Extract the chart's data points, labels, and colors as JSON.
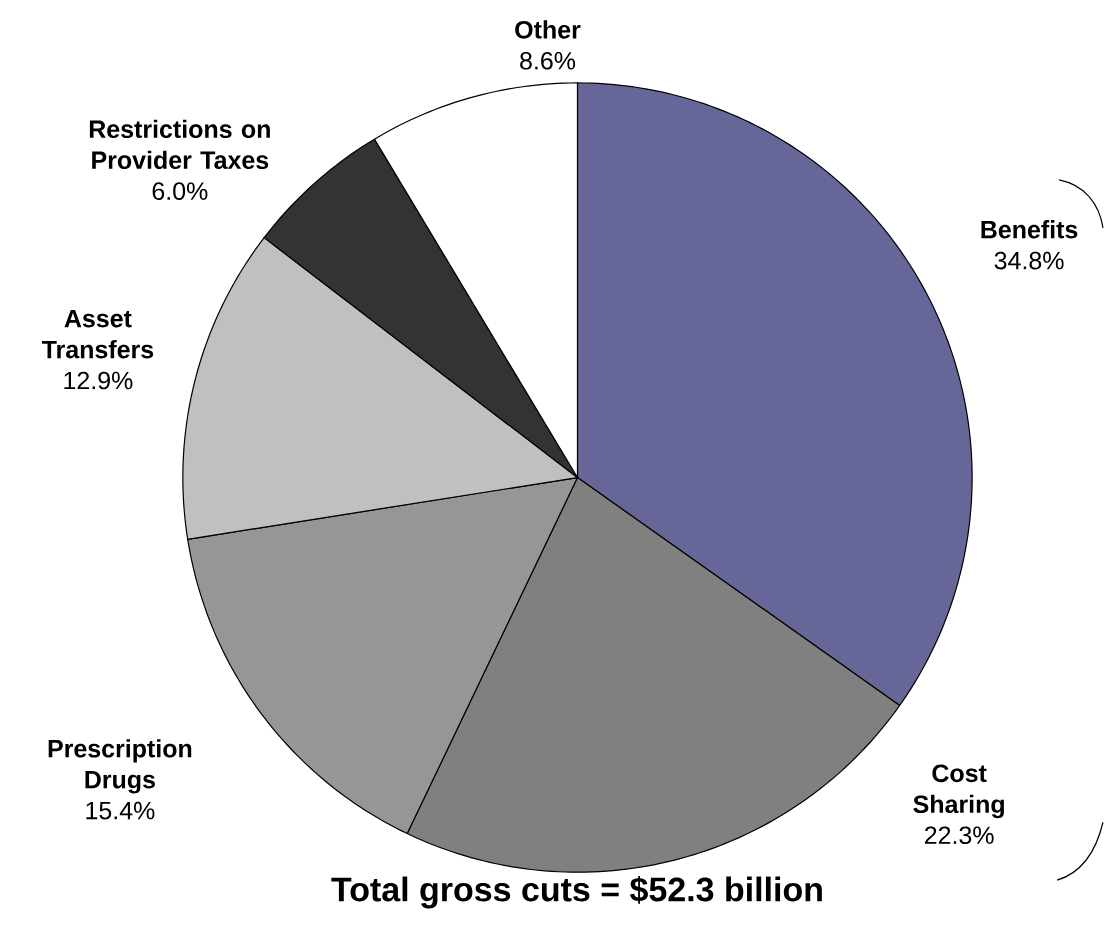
{
  "chart_data": {
    "type": "pie",
    "title": "Total gross cuts = $52.3 billion",
    "categories": [
      "Benefits",
      "Cost Sharing",
      "Prescription Drugs",
      "Asset Transfers",
      "Restrictions on Provider Taxes",
      "Other"
    ],
    "values": [
      34.8,
      22.3,
      15.4,
      12.9,
      6.0,
      8.6
    ],
    "value_labels": [
      "34.8%",
      "22.3%",
      "15.4%",
      "12.9%",
      "6.0%",
      "8.6%"
    ],
    "colors": [
      "#666699",
      "#808080",
      "#969696",
      "#c0c0c0",
      "#333333",
      "#ffffff"
    ]
  }
}
